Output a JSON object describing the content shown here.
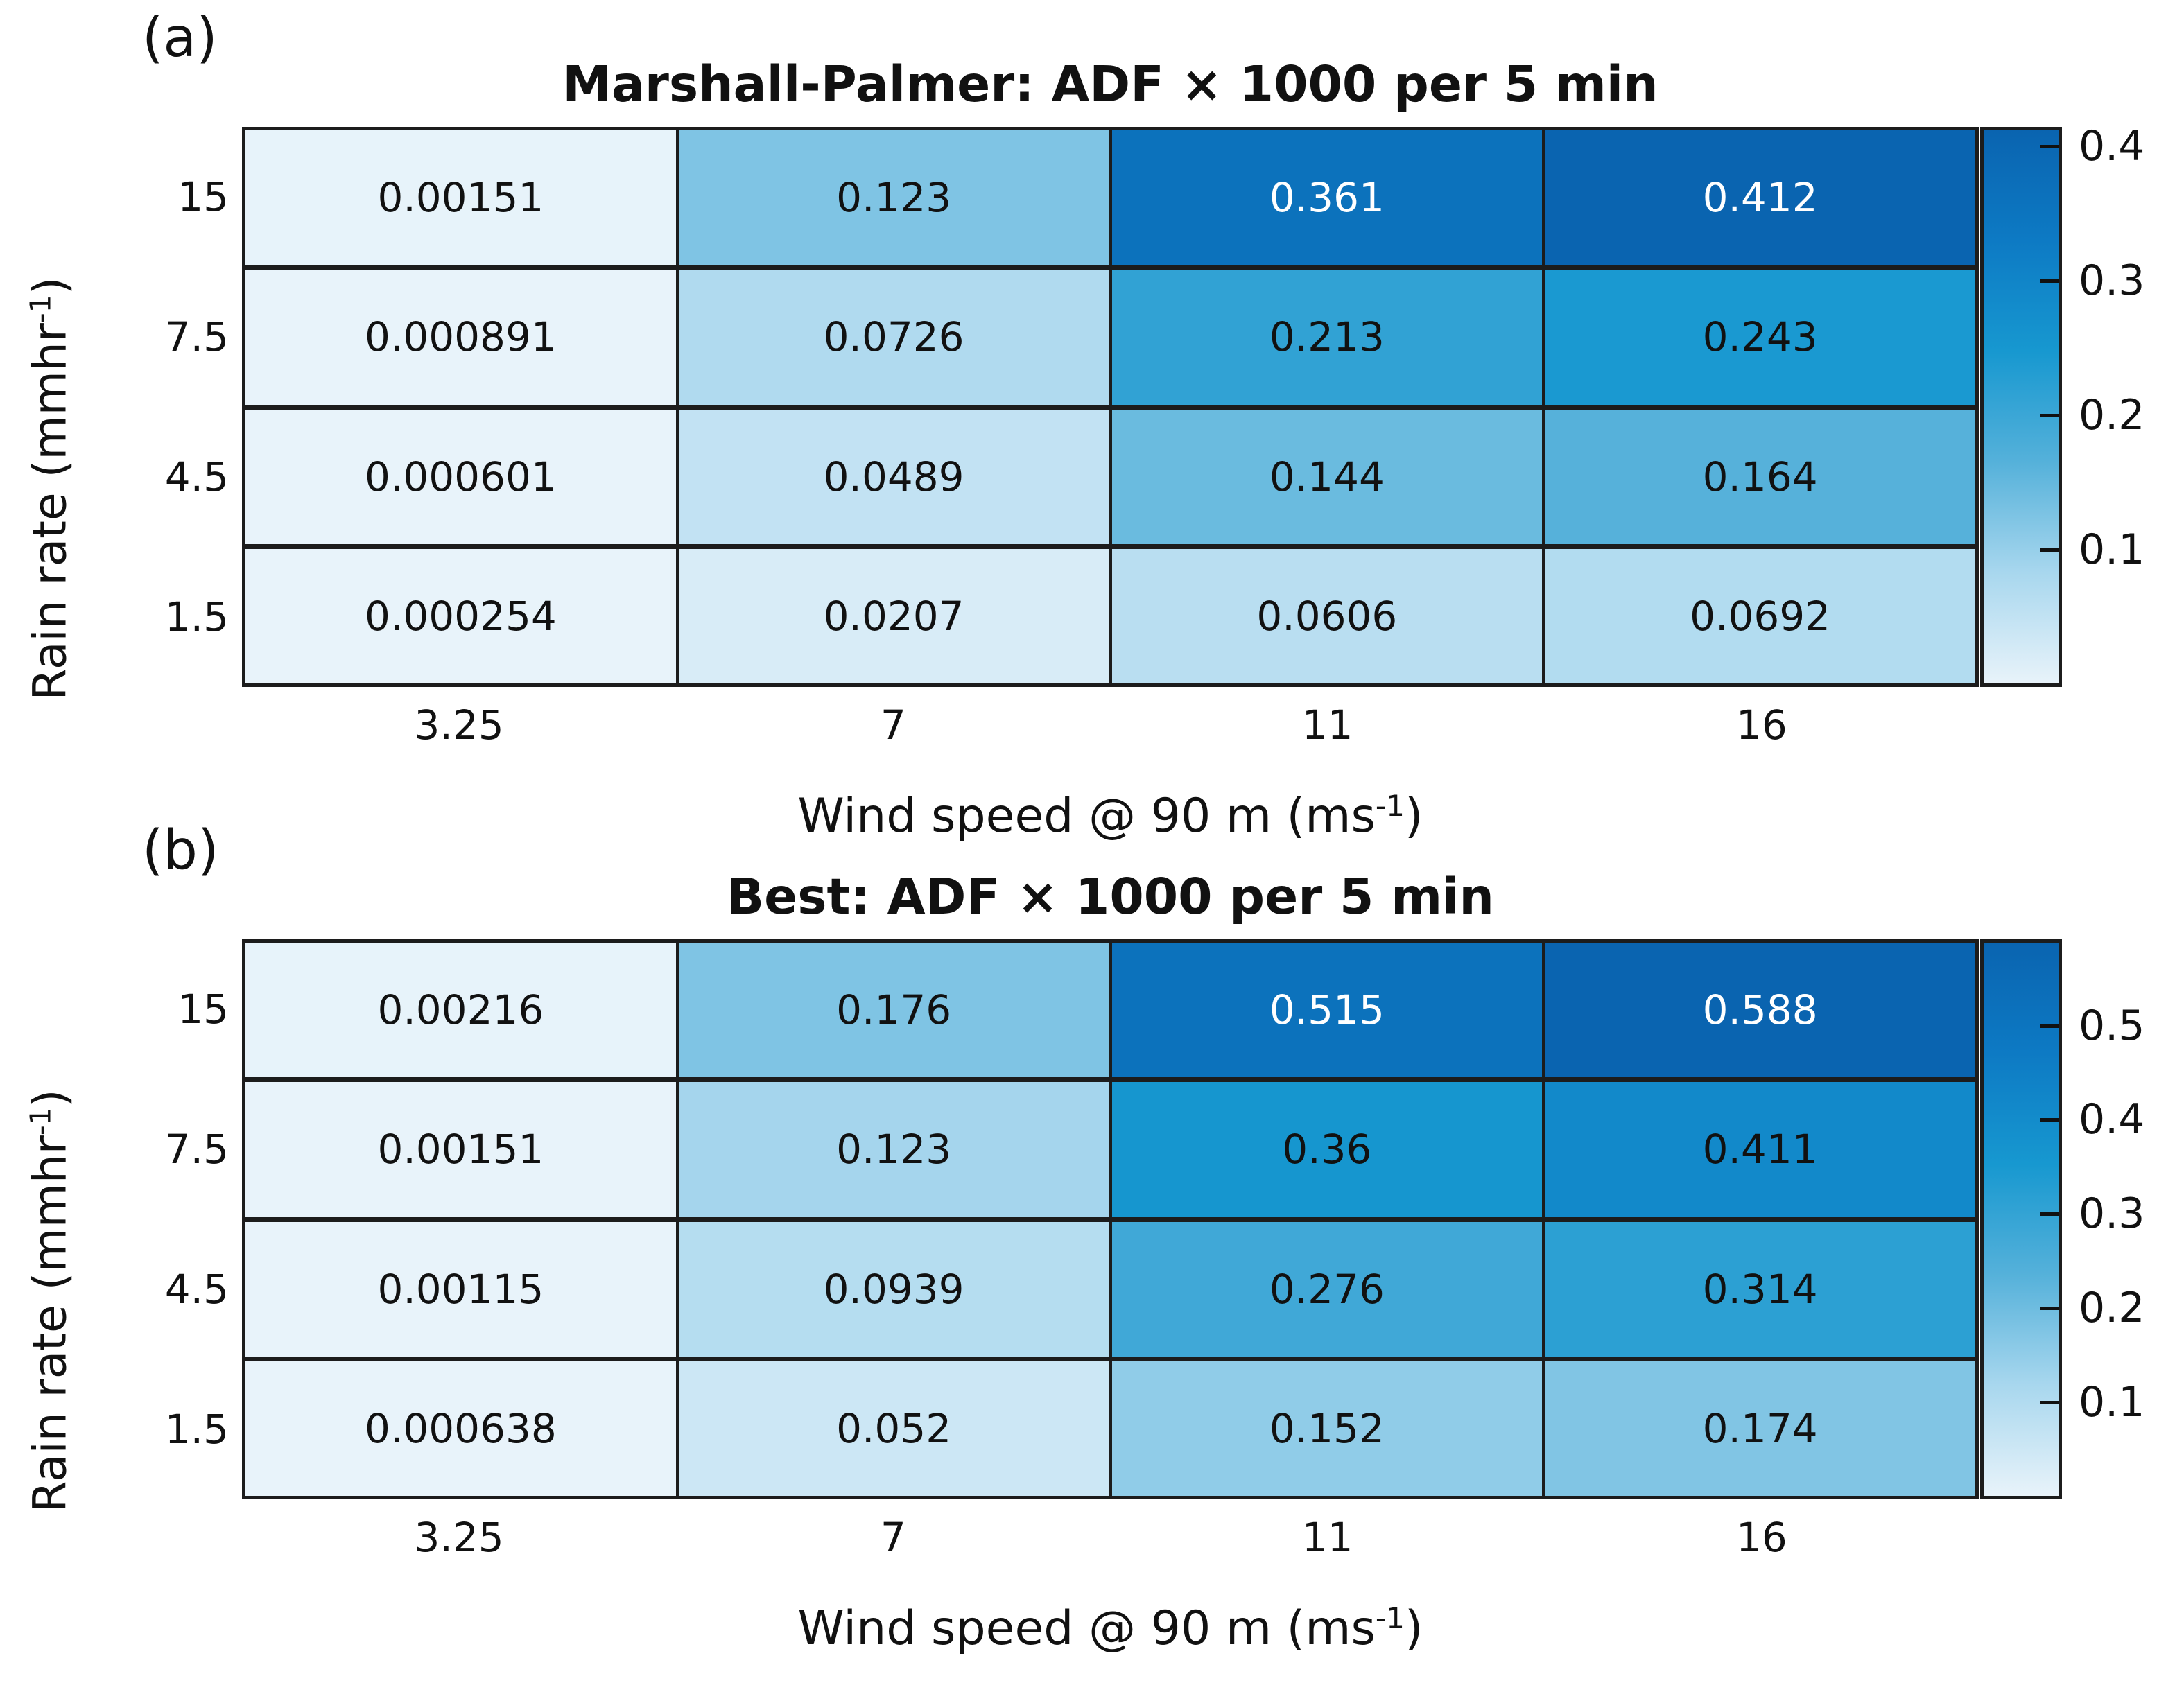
{
  "figure": {
    "ylabel": {
      "main": "Rain rate (mmhr",
      "sup": "-1",
      "close": ")"
    },
    "xlabel": {
      "main": "Wind speed @ 90 m (ms",
      "sup": "-1",
      "close": ")"
    },
    "colormap_stops": [
      [
        0.0,
        "#e8f3fa"
      ],
      [
        0.2,
        "#a8d7ee"
      ],
      [
        0.4,
        "#55b1da"
      ],
      [
        0.6,
        "#1798d0"
      ],
      [
        0.8,
        "#0d7ac4"
      ],
      [
        1.0,
        "#0a64b0"
      ]
    ],
    "grid_line_color": "#1c1c1c",
    "white_text_threshold": 0.8,
    "text_color": "#111111",
    "background_color": "#ffffff"
  },
  "chart_data": [
    {
      "type": "heatmap",
      "panel_tag": "(a)",
      "title": "Marshall-Palmer: ADF × 1000 per 5 min",
      "xlabel": "Wind speed @ 90 m (ms^-1)",
      "ylabel": "Rain rate (mmhr^-1)",
      "x_categories": [
        "3.25",
        "7",
        "11",
        "16"
      ],
      "y_categories": [
        "15",
        "7.5",
        "4.5",
        "1.5"
      ],
      "values": [
        [
          0.00151,
          0.123,
          0.361,
          0.412
        ],
        [
          0.000891,
          0.0726,
          0.213,
          0.243
        ],
        [
          0.000601,
          0.0489,
          0.144,
          0.164
        ],
        [
          0.000254,
          0.0207,
          0.0606,
          0.0692
        ]
      ],
      "value_labels": [
        [
          "0.00151",
          "0.123",
          "0.361",
          "0.412"
        ],
        [
          "0.000891",
          "0.0726",
          "0.213",
          "0.243"
        ],
        [
          "0.000601",
          "0.0489",
          "0.144",
          "0.164"
        ],
        [
          "0.000254",
          "0.0207",
          "0.0606",
          "0.0692"
        ]
      ],
      "vmin": 0.000254,
      "vmax": 0.412,
      "colorbar_ticks": [
        0.4,
        0.3,
        0.2,
        0.1
      ],
      "colorbar_tick_labels": [
        "0.4",
        "0.3",
        "0.2",
        "0.1"
      ],
      "legend_position": "right-colorbar",
      "grid": "on"
    },
    {
      "type": "heatmap",
      "panel_tag": "(b)",
      "title": "Best: ADF × 1000 per 5 min",
      "xlabel": "Wind speed @ 90 m (ms^-1)",
      "ylabel": "Rain rate (mmhr^-1)",
      "x_categories": [
        "3.25",
        "7",
        "11",
        "16"
      ],
      "y_categories": [
        "15",
        "7.5",
        "4.5",
        "1.5"
      ],
      "values": [
        [
          0.00216,
          0.176,
          0.515,
          0.588
        ],
        [
          0.00151,
          0.123,
          0.36,
          0.411
        ],
        [
          0.00115,
          0.0939,
          0.276,
          0.314
        ],
        [
          0.000638,
          0.052,
          0.152,
          0.174
        ]
      ],
      "value_labels": [
        [
          "0.00216",
          "0.176",
          "0.515",
          "0.588"
        ],
        [
          "0.00151",
          "0.123",
          "0.36",
          "0.411"
        ],
        [
          "0.00115",
          "0.0939",
          "0.276",
          "0.314"
        ],
        [
          "0.000638",
          "0.052",
          "0.152",
          "0.174"
        ]
      ],
      "vmin": 0.000638,
      "vmax": 0.588,
      "colorbar_ticks": [
        0.5,
        0.4,
        0.3,
        0.2,
        0.1
      ],
      "colorbar_tick_labels": [
        "0.5",
        "0.4",
        "0.3",
        "0.2",
        "0.1"
      ],
      "legend_position": "right-colorbar",
      "grid": "on"
    }
  ]
}
